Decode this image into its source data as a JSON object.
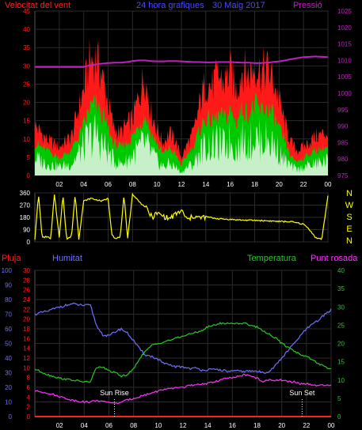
{
  "header": {
    "wind_label": "Velocitat del vent",
    "title": "24 hora grafiques",
    "date": "30 Maig 2017",
    "pressure_label": "Pressió"
  },
  "colors": {
    "background": "#000000",
    "grid": "#2b2b2b",
    "frame": "#555555",
    "wind_gust": "#ff1a1a",
    "wind_avg": "#00c800",
    "wind_low": "#c8f0c8",
    "pressure": "#c020c0",
    "direction": "#ffff00",
    "humidity": "#7070ff",
    "temperature": "#22cc22",
    "dewpoint": "#ff33ff",
    "rain": "#ff2020",
    "axis_text": "#ffffff"
  },
  "chart_data": [
    {
      "type": "area",
      "name": "wind-pressure",
      "title": "24 hora grafiques 30 Maig 2017",
      "ylabel": "Velocitat del vent",
      "y2label": "Pressió",
      "x_ticks": [
        "02",
        "04",
        "06",
        "08",
        "10",
        "12",
        "14",
        "16",
        "18",
        "20",
        "22",
        "00"
      ],
      "x_range_hours": [
        0,
        24
      ],
      "ylim": [
        0,
        45
      ],
      "y_ticks": [
        0,
        5,
        10,
        15,
        20,
        25,
        30,
        35,
        40,
        45
      ],
      "y2lim": [
        975,
        1025
      ],
      "y2_ticks": [
        975,
        980,
        985,
        990,
        995,
        1000,
        1005,
        1010,
        1015,
        1020,
        1025
      ],
      "grid": true,
      "x_hours": [
        0,
        1,
        2,
        3,
        4,
        4.5,
        5,
        5.5,
        6,
        6.5,
        7,
        7.5,
        8,
        8.5,
        9,
        9.5,
        10,
        10.5,
        11,
        11.5,
        12,
        12.5,
        13,
        13.5,
        14,
        14.5,
        15,
        15.5,
        16,
        16.5,
        17,
        17.5,
        18,
        18.5,
        19,
        19.5,
        20,
        20.5,
        21,
        21.5,
        22,
        23,
        24
      ],
      "series": [
        {
          "name": "gust",
          "values": [
            14,
            10,
            8,
            11,
            24,
            32,
            33,
            28,
            20,
            13,
            12,
            14,
            16,
            22,
            28,
            18,
            13,
            9,
            12,
            10,
            5,
            9,
            12,
            20,
            26,
            25,
            28,
            26,
            29,
            24,
            30,
            28,
            31,
            29,
            30,
            27,
            21,
            14,
            9,
            7,
            8,
            11,
            12
          ]
        },
        {
          "name": "average",
          "values": [
            9,
            7,
            5,
            7,
            14,
            19,
            20,
            17,
            13,
            9,
            8,
            9,
            11,
            14,
            17,
            12,
            9,
            6,
            8,
            6,
            3,
            6,
            8,
            13,
            16,
            15,
            17,
            16,
            18,
            15,
            19,
            17,
            20,
            18,
            19,
            17,
            13,
            9,
            5,
            4,
            5,
            7,
            8
          ]
        },
        {
          "name": "low",
          "values": [
            6,
            4,
            3,
            4,
            10,
            13,
            14,
            11,
            8,
            5,
            4,
            5,
            7,
            9,
            11,
            8,
            5,
            3,
            4,
            3,
            1,
            3,
            4,
            8,
            10,
            10,
            11,
            10,
            12,
            9,
            12,
            11,
            13,
            12,
            12,
            11,
            8,
            5,
            3,
            2,
            3,
            4,
            5
          ]
        },
        {
          "name": "pressure",
          "values": [
            1008,
            1008,
            1008,
            1008,
            1008,
            1008.5,
            1008.8,
            1009,
            1009.2,
            1009.3,
            1009.3,
            1009.5,
            1009.8,
            1010,
            1010,
            1009.8,
            1009.7,
            1009.7,
            1009.8,
            1009.8,
            1009.7,
            1009.6,
            1009.5,
            1009.5,
            1009.4,
            1009.4,
            1009.5,
            1009.5,
            1009.5,
            1009.4,
            1009.3,
            1009.3,
            1009.2,
            1009.2,
            1009.3,
            1009.5,
            1009.7,
            1010,
            1010.4,
            1010.7,
            1011,
            1011.2,
            1011
          ]
        }
      ]
    },
    {
      "type": "line",
      "name": "wind-direction",
      "x_ticks": [
        "02",
        "04",
        "06",
        "08",
        "10",
        "12",
        "14",
        "16",
        "18",
        "20",
        "22",
        "00"
      ],
      "ylim": [
        0,
        360
      ],
      "y_ticks": [
        0,
        90,
        180,
        270,
        360
      ],
      "compass_labels": [
        "N",
        "W",
        "S",
        "E",
        "N"
      ],
      "grid": true,
      "x_hours": [
        0,
        0.3,
        0.6,
        1,
        1.3,
        1.6,
        2,
        2.3,
        2.6,
        3,
        3.3,
        3.6,
        4,
        4.3,
        4.6,
        5,
        5.5,
        6,
        6.3,
        6.6,
        7,
        7.3,
        7.6,
        8,
        8.3,
        8.6,
        9,
        9.3,
        9.6,
        10,
        10.5,
        11,
        11.5,
        12,
        12.5,
        13,
        13.5,
        14,
        15,
        16,
        17,
        18,
        19,
        20,
        21,
        22,
        22.5,
        23,
        23.5,
        24
      ],
      "values": [
        20,
        350,
        30,
        40,
        20,
        350,
        30,
        350,
        20,
        40,
        350,
        20,
        300,
        310,
        320,
        310,
        300,
        320,
        60,
        20,
        40,
        340,
        30,
        350,
        320,
        290,
        260,
        220,
        180,
        210,
        190,
        170,
        200,
        230,
        160,
        190,
        175,
        185,
        170,
        165,
        160,
        158,
        155,
        150,
        148,
        130,
        90,
        30,
        20,
        340
      ]
    },
    {
      "type": "line",
      "name": "humidity-temperature",
      "legend": [
        "Pluja",
        "Humitat",
        "Temperatura",
        "Punt rosada"
      ],
      "x_ticks": [
        "02",
        "04",
        "06",
        "08",
        "10",
        "12",
        "14",
        "16",
        "18",
        "20",
        "22",
        "00"
      ],
      "humidity_lim": [
        0,
        100
      ],
      "humidity_ticks": [
        0,
        10,
        20,
        30,
        40,
        50,
        60,
        70,
        80,
        90,
        100
      ],
      "rain_lim": [
        0,
        30
      ],
      "rain_ticks": [
        0,
        2,
        4,
        6,
        8,
        10,
        12,
        14,
        16,
        18,
        20,
        22,
        24,
        26,
        28,
        30
      ],
      "temp_lim": [
        0,
        40
      ],
      "temp_ticks": [
        0,
        5,
        10,
        15,
        20,
        25,
        30,
        35,
        40
      ],
      "grid": true,
      "annotations": [
        {
          "label": "Sun Rise",
          "hour": 6.45
        },
        {
          "label": "Sun Set",
          "hour": 21.65
        }
      ],
      "x_hours": [
        0,
        1,
        2,
        3,
        4,
        4.5,
        5,
        5.5,
        6,
        6.5,
        7,
        7.5,
        8,
        8.5,
        9,
        9.5,
        10,
        10.5,
        11,
        11.5,
        12,
        12.5,
        13,
        13.5,
        14,
        14.5,
        15,
        15.5,
        16,
        16.5,
        17,
        17.5,
        18,
        18.5,
        19,
        19.5,
        20,
        20.5,
        21,
        21.5,
        22,
        22.5,
        23,
        23.5,
        24
      ],
      "series": [
        {
          "name": "Humitat",
          "axis": "humidity",
          "values": [
            70,
            72,
            75,
            77,
            76,
            76,
            62,
            56,
            55,
            58,
            60,
            57,
            52,
            46,
            42,
            41,
            39,
            36,
            35,
            34,
            34,
            33,
            33,
            32,
            32,
            32,
            32,
            31,
            31,
            31,
            31,
            31,
            31,
            30,
            31,
            35,
            40,
            45,
            50,
            55,
            60,
            63,
            66,
            70,
            73
          ]
        },
        {
          "name": "Temperatura",
          "axis": "temp",
          "values": [
            13,
            11.5,
            10.5,
            10,
            9.5,
            9.5,
            13.5,
            13.5,
            12.5,
            12,
            11,
            11.5,
            13,
            16,
            18,
            19.5,
            20,
            20.5,
            21,
            21.5,
            22,
            22.5,
            23,
            23.5,
            24.5,
            25,
            25.5,
            25.5,
            25.5,
            25.5,
            25.5,
            25,
            24.5,
            23.5,
            22.5,
            21.5,
            20,
            19,
            18,
            17,
            16.5,
            15.5,
            14.5,
            13.5,
            13
          ]
        },
        {
          "name": "Punt rosada",
          "axis": "temp",
          "values": [
            7,
            6.5,
            5.5,
            4.5,
            4,
            4,
            4.5,
            4,
            4,
            3.5,
            4,
            4.5,
            5,
            5.5,
            6,
            6.5,
            7,
            7.5,
            7.5,
            8,
            8,
            8.5,
            8.5,
            9,
            9,
            9.5,
            10,
            10.5,
            10.5,
            11,
            11.5,
            11,
            10.5,
            9.5,
            10,
            10,
            10,
            9.5,
            9.5,
            9,
            9,
            8.5,
            8.5,
            8.5,
            8.5
          ]
        },
        {
          "name": "Pluja",
          "axis": "rain",
          "values": [
            0,
            0,
            0,
            0,
            0,
            0,
            0,
            0,
            0,
            0,
            0,
            0,
            0,
            0,
            0,
            0,
            0,
            0,
            0,
            0,
            0,
            0,
            0,
            0,
            0,
            0,
            0,
            0,
            0,
            0,
            0,
            0,
            0,
            0,
            0,
            0,
            0,
            0,
            0,
            0,
            0,
            0,
            0,
            0,
            0
          ]
        }
      ]
    }
  ],
  "panel_labels": {
    "rain": "Pluja",
    "humidity": "Humitat",
    "temperature": "Temperatura",
    "dewpoint": "Punt rosada"
  }
}
